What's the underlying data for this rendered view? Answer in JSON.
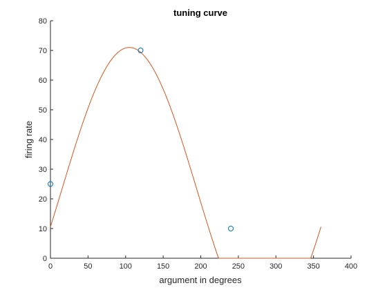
{
  "chart_data": {
    "type": "line",
    "title": "tuning curve",
    "xlabel": "argument in degrees",
    "ylabel": "firing rate",
    "xlim": [
      0,
      400
    ],
    "ylim": [
      0,
      80
    ],
    "xticks": [
      0,
      50,
      100,
      150,
      200,
      250,
      300,
      350,
      400
    ],
    "yticks": [
      0,
      10,
      20,
      30,
      40,
      50,
      60,
      70,
      80
    ],
    "grid": false,
    "curve": {
      "color": "#d95319",
      "x_range": [
        0,
        360
      ],
      "model": "rectified-cosine",
      "peak_rate": 71,
      "preferred_angle": 105,
      "baseline": 23
    },
    "points": {
      "color": "#0072bd",
      "marker": "circle",
      "x": [
        0,
        120,
        240
      ],
      "y": [
        25,
        70,
        10
      ]
    }
  }
}
